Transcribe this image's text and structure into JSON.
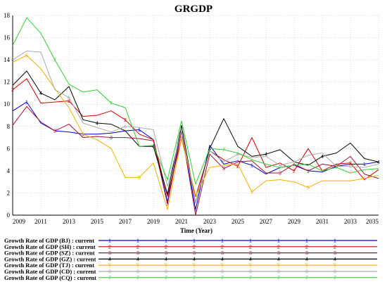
{
  "chart_data": {
    "type": "line",
    "title": "GRGDP",
    "xlabel": "Time (Year)",
    "ylabel": "",
    "xlim": [
      2009,
      2035
    ],
    "ylim": [
      0,
      18
    ],
    "grid": true,
    "legend_placement": "bottom",
    "x_ticks": [
      2009,
      2011,
      2013,
      2015,
      2017,
      2019,
      2021,
      2023,
      2025,
      2027,
      2029,
      2031,
      2033,
      2035
    ],
    "y_ticks": [
      0,
      2,
      4,
      6,
      8,
      10,
      12,
      14,
      16,
      18
    ],
    "x": [
      2009,
      2010,
      2011,
      2012,
      2013,
      2014,
      2015,
      2016,
      2017,
      2018,
      2019,
      2020,
      2021,
      2022,
      2023,
      2024,
      2025,
      2026,
      2027,
      2028,
      2029,
      2030,
      2031,
      2032,
      2033,
      2034,
      2035
    ],
    "series": [
      {
        "name": "Growth Rate of GDP (BJ) : current",
        "marker": "1",
        "color": "#0000cc",
        "values": [
          9.4,
          10.2,
          8.3,
          7.6,
          7.5,
          7.3,
          7.3,
          7.4,
          7.6,
          7.7,
          6.8,
          1.2,
          7.8,
          0.5,
          6.3,
          4.6,
          4.9,
          4.5,
          3.7,
          4.3,
          4.5,
          4.0,
          3.9,
          4.4,
          4.6,
          4.6,
          4.8
        ]
      },
      {
        "name": "Growth Rate of GDP (SH) : current",
        "marker": "2",
        "color": "#cc0000",
        "values": [
          11.3,
          12.3,
          10.1,
          10.2,
          10.3,
          8.9,
          9.0,
          9.4,
          8.6,
          7.3,
          6.8,
          1.7,
          6.9,
          1.7,
          5.8,
          5.0,
          4.4,
          7.0,
          4.3,
          4.7,
          4.0,
          6.0,
          4.0,
          4.6,
          4.7,
          3.2,
          4.1
        ]
      },
      {
        "name": "Growth Rate of GDP (SZ) : current",
        "marker": "3",
        "color": "#a01030",
        "values": [
          8.1,
          9.8,
          8.4,
          7.6,
          8.2,
          7.0,
          7.1,
          7.0,
          7.0,
          6.9,
          6.7,
          1.0,
          7.6,
          0.0,
          5.5,
          4.2,
          4.8,
          4.9,
          3.8,
          3.8,
          4.6,
          4.0,
          4.6,
          4.4,
          5.3,
          3.7,
          3.3
        ]
      },
      {
        "name": "Growth Rate of GDP (GZ) : current",
        "marker": "4",
        "color": "#000000",
        "values": [
          11.7,
          13.0,
          11.0,
          10.4,
          11.6,
          8.6,
          8.3,
          8.2,
          7.6,
          6.2,
          6.2,
          1.9,
          8.1,
          1.1,
          6.0,
          8.7,
          6.2,
          5.3,
          5.5,
          5.9,
          4.8,
          4.5,
          5.3,
          5.6,
          6.5,
          5.1,
          4.8
        ]
      },
      {
        "name": "Growth Rate of GDP (TJ) : current",
        "marker": "5",
        "color": "#f0b000",
        "values": [
          13.8,
          14.4,
          13.2,
          11.4,
          9.7,
          7.3,
          6.8,
          6.0,
          3.4,
          3.4,
          4.7,
          0.5,
          6.9,
          1.8,
          4.3,
          4.5,
          4.6,
          2.1,
          3.1,
          3.2,
          3.0,
          2.5,
          3.1,
          3.1,
          3.1,
          3.3,
          3.6
        ]
      },
      {
        "name": "Growth Rate of GDP (CD) : current",
        "marker": "6",
        "color": "#aaaaaa",
        "values": [
          14.0,
          14.8,
          14.7,
          11.3,
          10.6,
          8.3,
          7.9,
          7.5,
          8.0,
          7.9,
          7.7,
          2.6,
          7.7,
          1.1,
          5.8,
          4.8,
          5.5,
          5.2,
          5.3,
          4.5,
          4.8,
          5.4,
          5.6,
          4.4,
          4.4,
          4.3,
          4.6
        ]
      },
      {
        "name": "Growth Rate of GDP (CQ) : current",
        "marker": "7",
        "color": "#33cc33",
        "values": [
          15.3,
          17.8,
          16.4,
          14.0,
          11.8,
          11.1,
          11.3,
          10.1,
          9.7,
          6.2,
          6.3,
          3.2,
          8.5,
          2.8,
          6.0,
          5.9,
          5.6,
          5.0,
          4.6,
          4.3,
          4.5,
          4.6,
          4.0,
          4.3,
          3.8,
          4.1,
          4.2
        ]
      }
    ]
  }
}
